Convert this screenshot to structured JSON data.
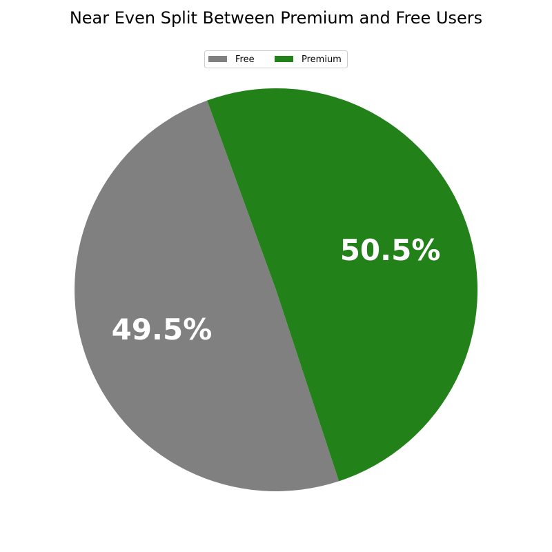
{
  "chart_data": {
    "type": "pie",
    "title": "Near Even Split Between Premium and Free Users",
    "legend_position": "top-center",
    "slices": [
      {
        "label": "Free",
        "value": 49.5,
        "display": "49.5%",
        "color": "#808080"
      },
      {
        "label": "Premium",
        "value": 50.5,
        "display": "50.5%",
        "color": "#228119"
      }
    ]
  }
}
